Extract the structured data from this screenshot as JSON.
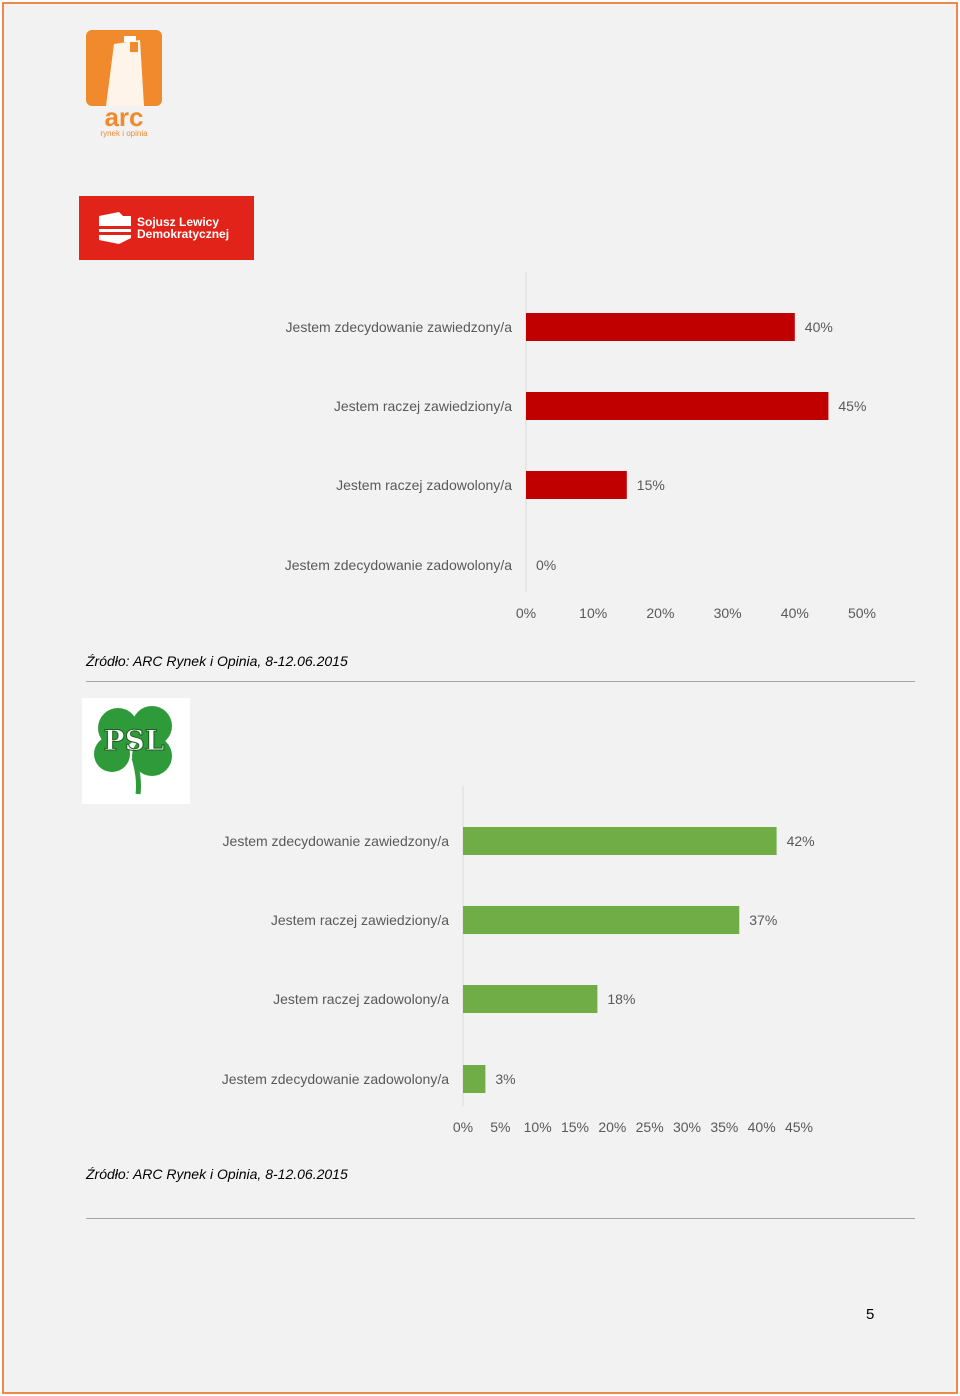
{
  "header": {
    "logo_text": "arc",
    "logo_subtext": "rynek i opinia"
  },
  "sld_logo": {
    "line1": "Sojusz Lewicy",
    "line2": "Demokratycznej"
  },
  "psl_logo": {
    "text": "PSL"
  },
  "chart_data": [
    {
      "type": "bar",
      "orientation": "horizontal",
      "categories": [
        "Jestem zdecydowanie zawiedzony/a",
        "Jestem raczej zawiedziony/a",
        "Jestem raczej zadowolony/a",
        "Jestem zdecydowanie zadowolony/a"
      ],
      "values": [
        40,
        45,
        15,
        0
      ],
      "value_labels": [
        "40%",
        "45%",
        "15%",
        "0%"
      ],
      "xlim": [
        0,
        50
      ],
      "x_ticks": [
        "0%",
        "10%",
        "20%",
        "30%",
        "40%",
        "50%"
      ],
      "color": "#c00000",
      "grid": false
    },
    {
      "type": "bar",
      "orientation": "horizontal",
      "categories": [
        "Jestem zdecydowanie zawiedzony/a",
        "Jestem raczej zawiedziony/a",
        "Jestem raczej zadowolony/a",
        "Jestem zdecydowanie zadowolony/a"
      ],
      "values": [
        42,
        37,
        18,
        3
      ],
      "value_labels": [
        "42%",
        "37%",
        "18%",
        "3%"
      ],
      "xlim": [
        0,
        45
      ],
      "x_ticks": [
        "0%",
        "5%",
        "10%",
        "15%",
        "20%",
        "25%",
        "30%",
        "35%",
        "40%",
        "45%"
      ],
      "color": "#70ad47",
      "grid": false
    }
  ],
  "sources": [
    "Źródło: ARC Rynek i Opinia, 8-12.06.2015",
    "Źródło: ARC Rynek i Opinia, 8-12.06.2015"
  ],
  "page_number": "5",
  "colors": {
    "page_border": "#ec8a4a",
    "arc_orange": "#f08a2c",
    "sld_red": "#e2231a",
    "psl_green": "#2e9a3a"
  }
}
